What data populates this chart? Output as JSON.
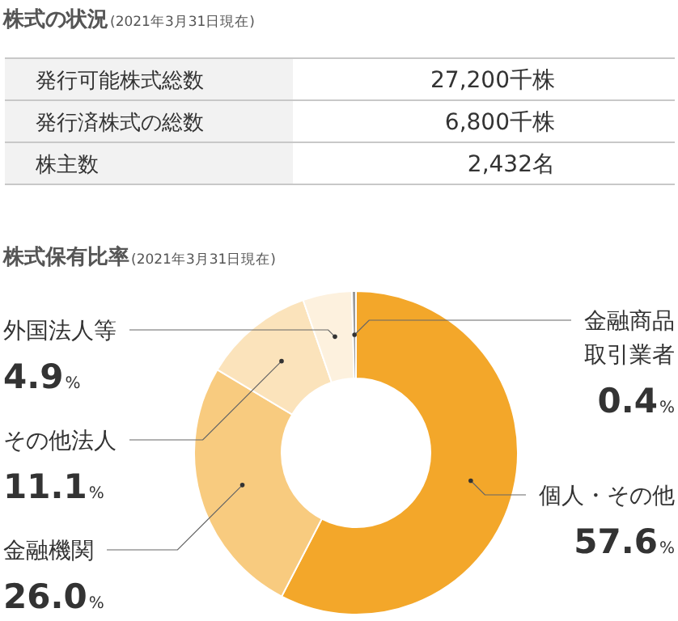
{
  "chart_data": [
    {
      "type": "other",
      "title": "株式の状況",
      "subtitle": "(2021年3月31日現在)",
      "annotations": [
        "発行可能株式総数",
        "27,200千株",
        "発行済株式の総数",
        "6,800千株",
        "株主数",
        "2,432名"
      ]
    },
    {
      "type": "donut",
      "title": "株式保有比率",
      "subtitle": "(2021年3月31日現在)",
      "categories": [
        "個人・その他",
        "金融機関",
        "その他法人",
        "外国法人等",
        "金融商品取引業者"
      ],
      "values": [
        57.6,
        26.0,
        11.1,
        4.9,
        0.4
      ],
      "colors": [
        "#f3a72a",
        "#f8cb7f",
        "#fbe3bb",
        "#fdf1de",
        "#9a9a9a"
      ],
      "value_labels": [
        "57.6%",
        "26.0%",
        "11.1%",
        "4.9%",
        "0.4%"
      ]
    }
  ]
}
